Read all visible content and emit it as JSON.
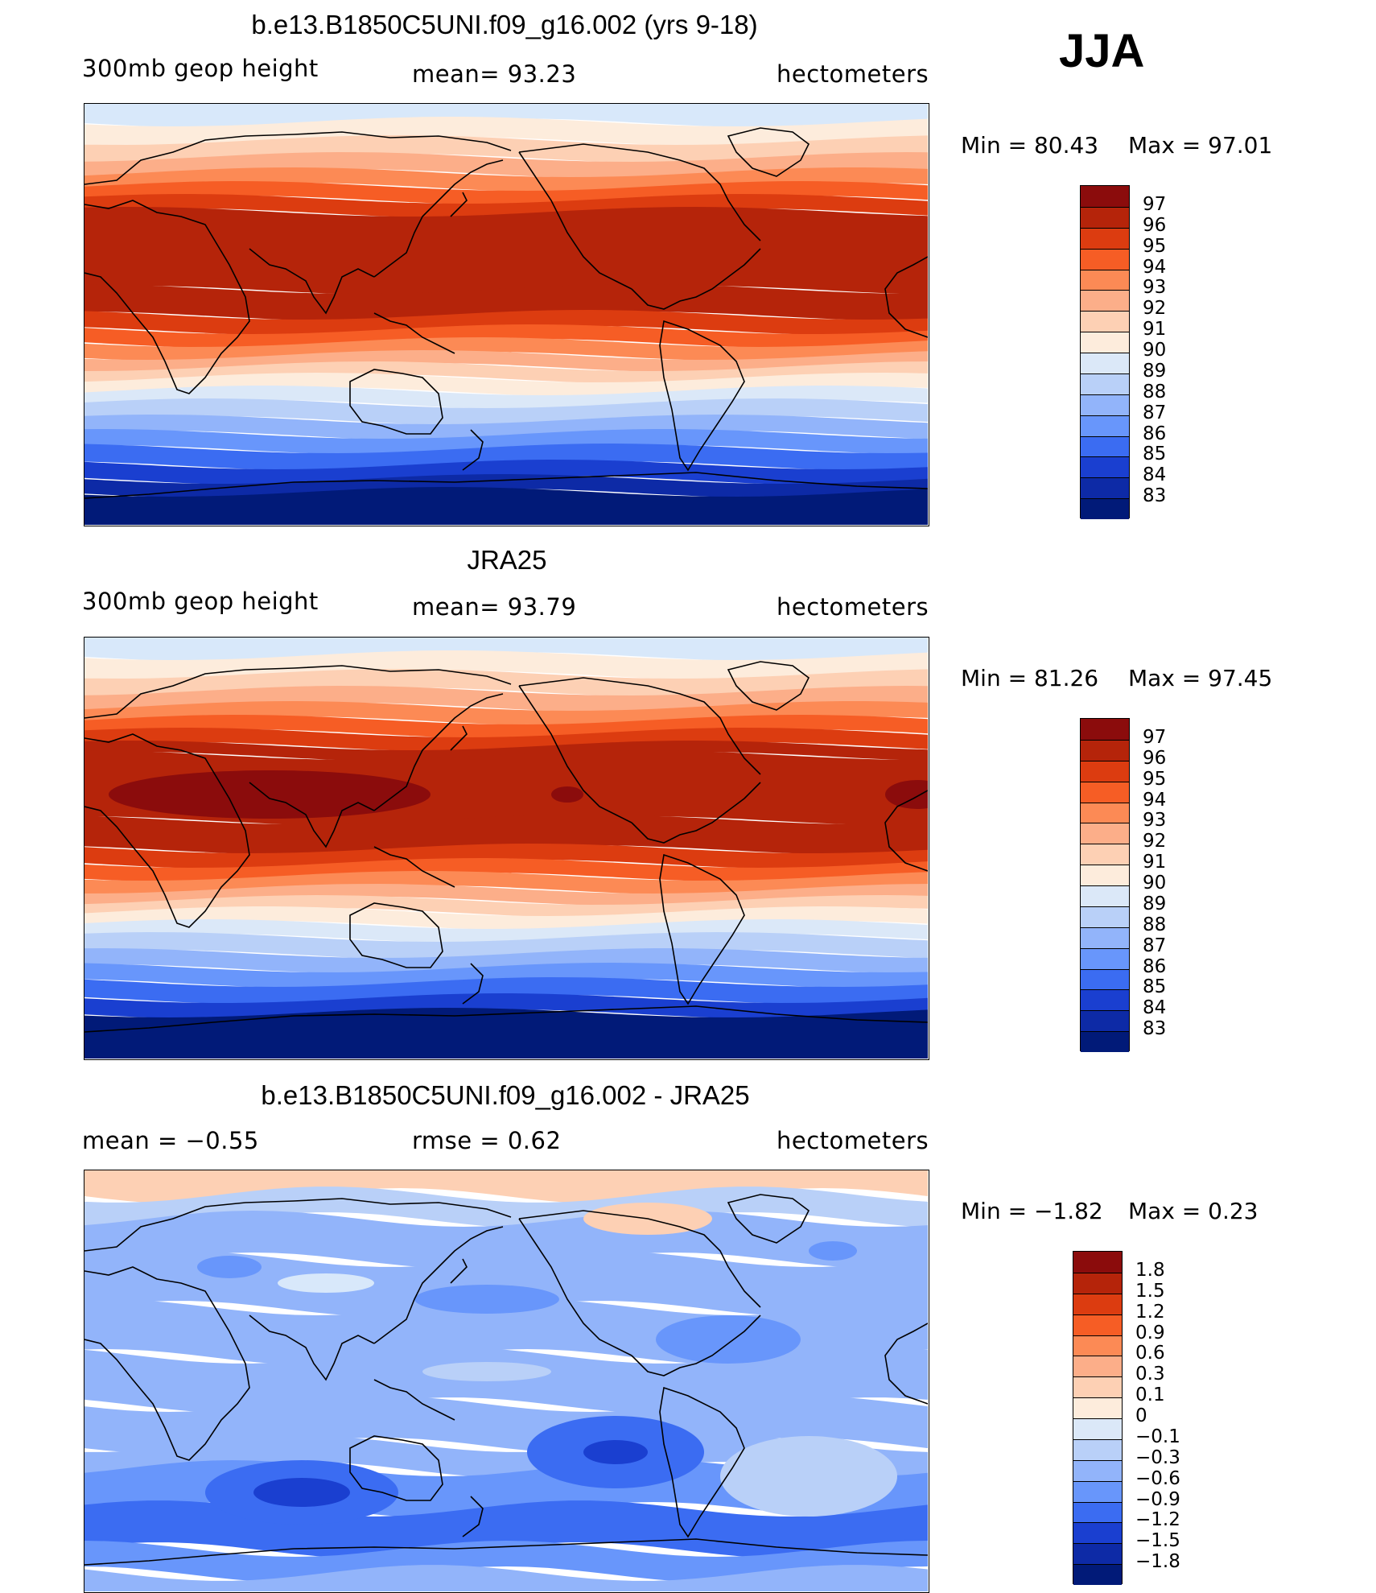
{
  "season": "JJA",
  "panels": [
    {
      "title": "b.e13.B1850C5UNI.f09_g16.002 (yrs 9-18)",
      "left_label": "300mb  geop  height",
      "center_label": "mean=   93.23",
      "right_label": "hectometers",
      "min_label": "Min  =    80.43",
      "max_label": "Max  =    97.01",
      "colorbar": {
        "labels": [
          "97",
          "96",
          "95",
          "94",
          "93",
          "92",
          "91",
          "90",
          "89",
          "88",
          "87",
          "86",
          "85",
          "84",
          "83"
        ],
        "colors": [
          "#8b0c0c",
          "#b5240a",
          "#dc3c10",
          "#f65d25",
          "#fc8a55",
          "#fcae89",
          "#fdd0b4",
          "#fdecdc",
          "#dbe8f8",
          "#b9d0f8",
          "#92b4fa",
          "#6896fb",
          "#3b6cf2",
          "#1a3fd0",
          "#0d2aa6",
          "#011a78"
        ]
      },
      "map_colors": [
        "#d8e8fa",
        "#fdecdc",
        "#fdd0b4",
        "#fcae89",
        "#fc8a55",
        "#f65d25",
        "#dc3c10",
        "#b5240a",
        "#b5240a",
        "#dc3c10",
        "#f65d25",
        "#fc8a55",
        "#fcae89",
        "#fdd0b4",
        "#fdecdc",
        "#dbe8f8",
        "#b9d0f8",
        "#92b4fa",
        "#6896fb",
        "#3b6cf2",
        "#1a3fd0",
        "#0d2aa6",
        "#011a78"
      ]
    },
    {
      "title": "JRA25",
      "left_label": "300mb  geop  height",
      "center_label": "mean=   93.79",
      "right_label": "hectometers",
      "min_label": "Min  =    81.26",
      "max_label": "Max  =    97.45",
      "colorbar": {
        "labels": [
          "97",
          "96",
          "95",
          "94",
          "93",
          "92",
          "91",
          "90",
          "89",
          "88",
          "87",
          "86",
          "85",
          "84",
          "83"
        ],
        "colors": [
          "#8b0c0c",
          "#b5240a",
          "#dc3c10",
          "#f65d25",
          "#fc8a55",
          "#fcae89",
          "#fdd0b4",
          "#fdecdc",
          "#dbe8f8",
          "#b9d0f8",
          "#92b4fa",
          "#6896fb",
          "#3b6cf2",
          "#1a3fd0",
          "#0d2aa6",
          "#011a78"
        ]
      },
      "map_colors": [
        "#d8e8fa",
        "#fdecdc",
        "#fdd0b4",
        "#fcae89",
        "#fc8a55",
        "#f65d25",
        "#dc3c10",
        "#b5240a",
        "#b5240a",
        "#b5240a",
        "#dc3c10",
        "#f65d25",
        "#fc8a55",
        "#fcae89",
        "#fdd0b4",
        "#fdecdc",
        "#dbe8f8",
        "#b9d0f8",
        "#92b4fa",
        "#6896fb",
        "#3b6cf2",
        "#1a3fd0",
        "#011a78"
      ]
    },
    {
      "title": "b.e13.B1850C5UNI.f09_g16.002 - JRA25",
      "left_label": "mean  =     −0.55",
      "center_label": "rmse  =     0.62",
      "right_label": "hectometers",
      "min_label": "Min  =    −1.82",
      "max_label": "Max  =      0.23",
      "colorbar": {
        "labels": [
          "1.8",
          "1.5",
          "1.2",
          "0.9",
          "0.6",
          "0.3",
          "0.1",
          "0",
          "−0.1",
          "−0.3",
          "−0.6",
          "−0.9",
          "−1.2",
          "−1.5",
          "−1.8"
        ],
        "colors": [
          "#8b0c0c",
          "#b5240a",
          "#dc3c10",
          "#f65d25",
          "#fc8a55",
          "#fcae89",
          "#fdd0b4",
          "#fdecdc",
          "#dbe8f8",
          "#b9d0f8",
          "#92b4fa",
          "#6896fb",
          "#3b6cf2",
          "#1a3fd0",
          "#0d2aa6",
          "#011a78"
        ]
      },
      "map_colors": [
        "#fdd0b4",
        "#b9d0f8",
        "#92b4fa",
        "#92b4fa",
        "#92b4fa",
        "#92b4fa",
        "#92b4fa",
        "#92b4fa",
        "#6896fb",
        "#3b6cf2",
        "#6896fb",
        "#92b4fa"
      ]
    }
  ]
}
